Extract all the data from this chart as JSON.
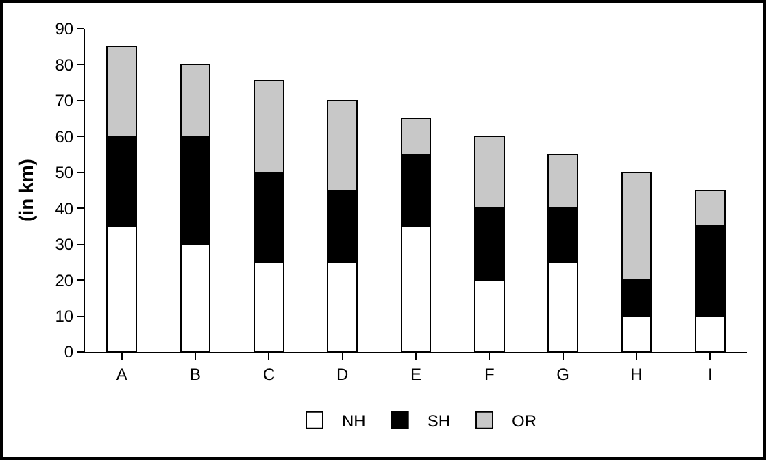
{
  "chart_data": {
    "type": "bar",
    "stacked": true,
    "ylabel": "(in km)",
    "categories": [
      "A",
      "B",
      "C",
      "D",
      "E",
      "F",
      "G",
      "H",
      "I"
    ],
    "series": [
      {
        "name": "NH",
        "color": "#ffffff",
        "values": [
          35,
          30,
          25,
          25,
          35,
          20,
          25,
          10,
          10
        ]
      },
      {
        "name": "SH",
        "color": "#000000",
        "values": [
          25,
          30,
          25,
          20,
          20,
          20,
          15,
          10,
          25
        ]
      },
      {
        "name": "OR",
        "color": "#c8c8c8",
        "values": [
          25,
          20,
          25.5,
          25,
          10,
          20,
          15,
          30,
          10
        ]
      }
    ],
    "ylim": [
      0,
      90
    ],
    "yticks": [
      0,
      10,
      20,
      30,
      40,
      50,
      60,
      70,
      80,
      90
    ],
    "grid": false,
    "legend": "bottom"
  }
}
